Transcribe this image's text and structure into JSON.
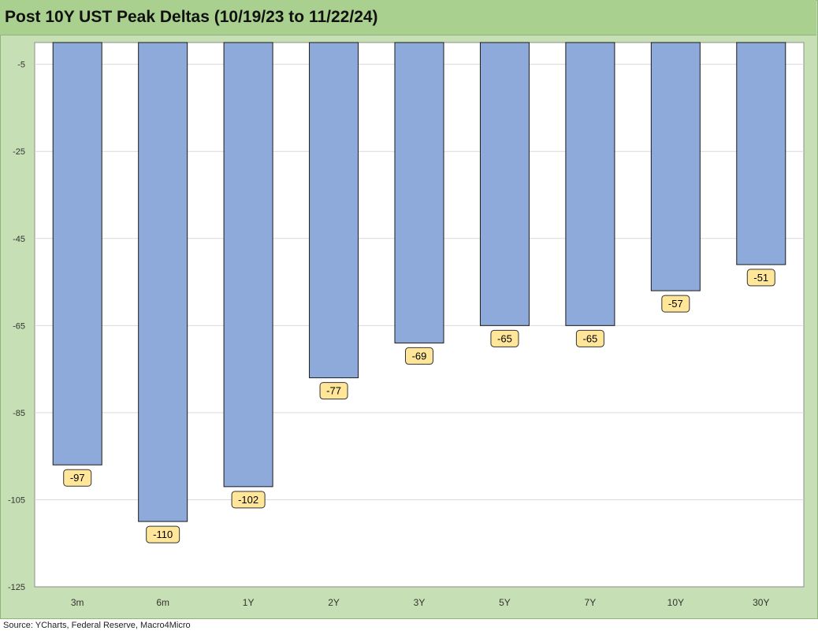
{
  "title": "Post 10Y UST Peak Deltas (10/19/23 to 11/22/24)",
  "source": "Source: YCharts, Federal Reserve, Macro4Micro",
  "colors": {
    "bar": "#8eaadb",
    "bar_outline": "#1a1a1a",
    "label_bg": "#ffe699",
    "frame": "#c7dfb4",
    "title_bar": "#a9d08e",
    "gridline": "#d9d9d9"
  },
  "chart_data": {
    "type": "bar",
    "title": "Post 10Y UST Peak Deltas (10/19/23 to 11/22/24)",
    "categories": [
      "3m",
      "6m",
      "1Y",
      "2Y",
      "3Y",
      "5Y",
      "7Y",
      "10Y",
      "30Y"
    ],
    "values": [
      -97,
      -110,
      -102,
      -77,
      -69,
      -65,
      -65,
      -57,
      -51
    ],
    "data_labels": [
      "-97",
      "-110",
      "-102",
      "-77",
      "-69",
      "-65",
      "-65",
      "-57",
      "-51"
    ],
    "y_ticks": [
      -5,
      -25,
      -45,
      -65,
      -85,
      -105,
      -125
    ],
    "y_tick_labels": [
      "-5",
      "-25",
      "-45",
      "-65",
      "-85",
      "-105",
      "-125"
    ],
    "ylim": [
      -125,
      0
    ],
    "grid": true,
    "legend": "none",
    "xlabel": "",
    "ylabel": ""
  }
}
